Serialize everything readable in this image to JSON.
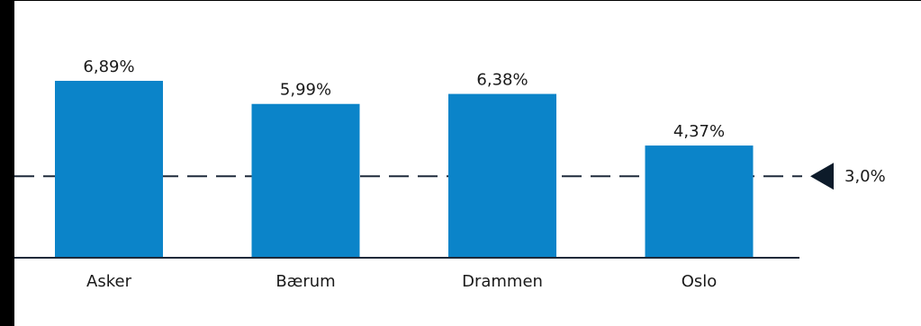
{
  "chart_data": {
    "type": "bar",
    "categories": [
      "Asker",
      "Bærum",
      "Drammen",
      "Oslo"
    ],
    "values": [
      6.89,
      5.99,
      6.38,
      4.37
    ],
    "value_labels": [
      "6,89%",
      "5,99%",
      "6,38%",
      "4,37%"
    ],
    "reference_line": {
      "value": 3.0,
      "label": "3,0%",
      "style": "dashed"
    },
    "title": "",
    "xlabel": "",
    "ylabel": "",
    "ylim": [
      0,
      6.89
    ],
    "grid": false,
    "legend": "none",
    "colors": {
      "bar": "#0b84c9",
      "axis": "#1f2a3a",
      "reference": "#1f2a3a",
      "marker": "#0d1b2a"
    }
  }
}
